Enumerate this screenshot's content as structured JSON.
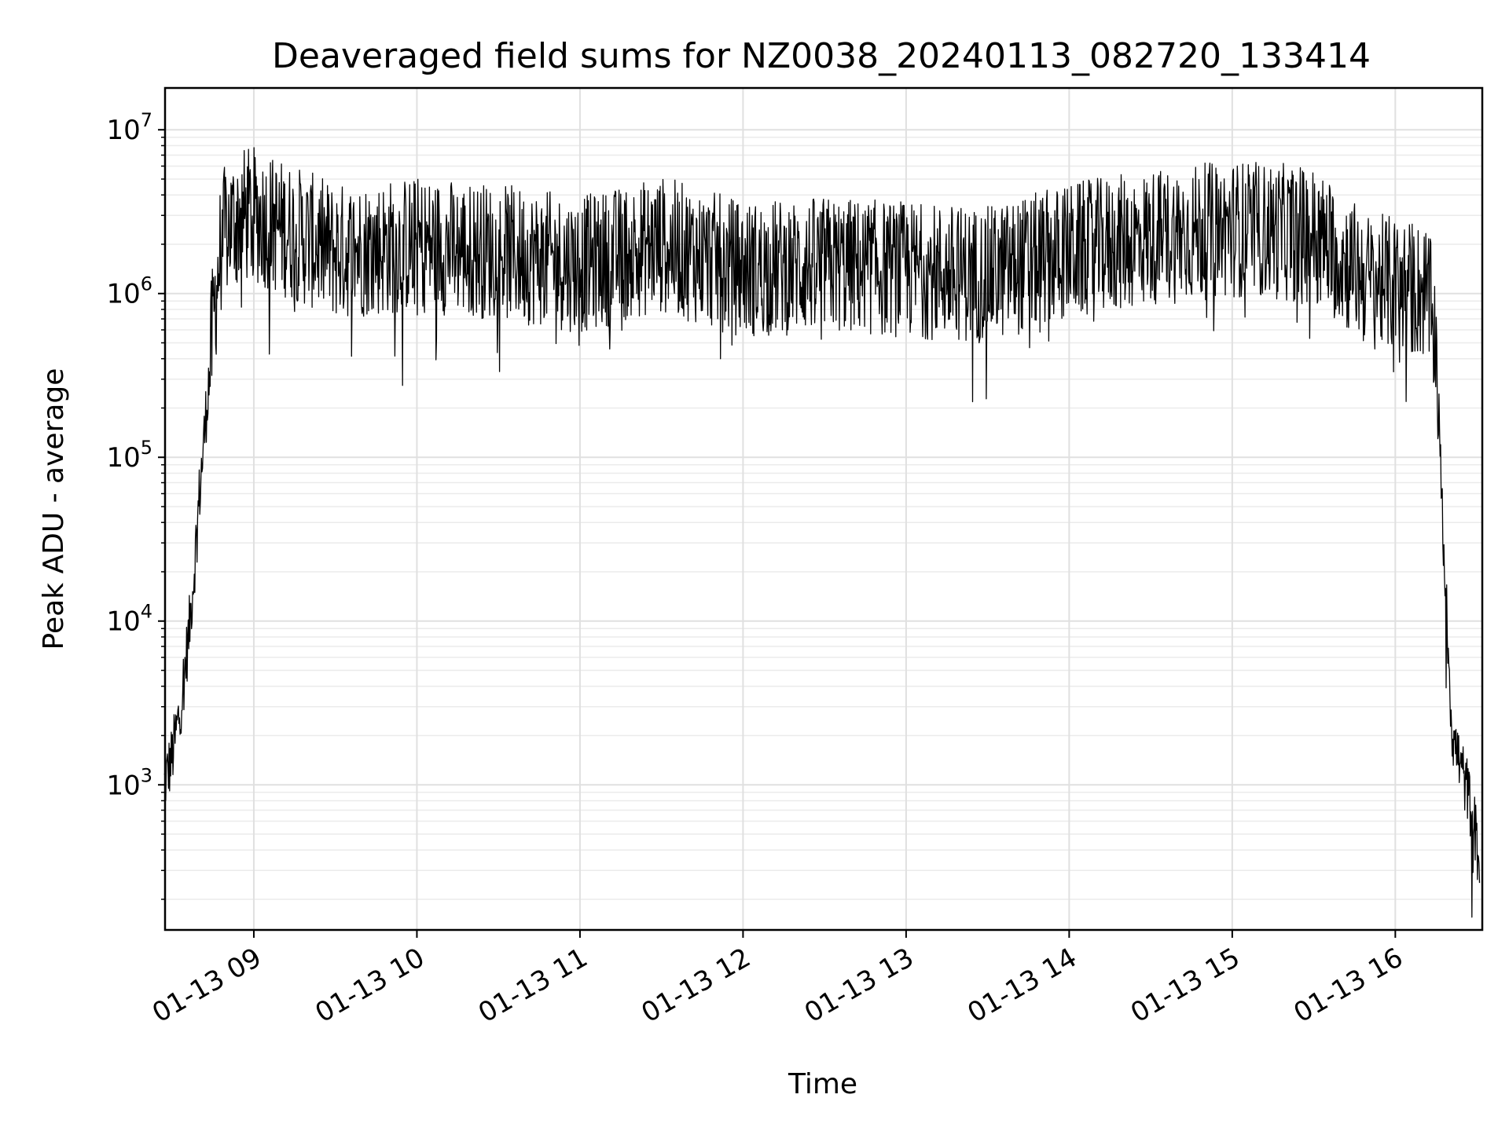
{
  "chart_data": {
    "type": "line",
    "title": "Deaveraged field sums for NZ0038_20240113_082720_133414",
    "xlabel": "Time",
    "ylabel": "Peak ADU - average",
    "x_axis": {
      "type": "time",
      "range": [
        "2024-01-13 08:27:20",
        "2024-01-13 16:32:00"
      ],
      "ticks": [
        "2024-01-13 09:00",
        "2024-01-13 10:00",
        "2024-01-13 11:00",
        "2024-01-13 12:00",
        "2024-01-13 13:00",
        "2024-01-13 14:00",
        "2024-01-13 15:00",
        "2024-01-13 16:00"
      ],
      "tick_labels": [
        "01-13 09",
        "01-13 10",
        "01-13 11",
        "01-13 12",
        "01-13 13",
        "01-13 14",
        "01-13 15",
        "01-13 16"
      ]
    },
    "y_axis": {
      "scale": "log",
      "ylim": [
        130,
        18000000
      ],
      "ticks": [
        1000,
        10000,
        100000,
        1000000,
        10000000
      ],
      "tick_labels": [
        {
          "base": "10",
          "exp": "3"
        },
        {
          "base": "10",
          "exp": "4"
        },
        {
          "base": "10",
          "exp": "5"
        },
        {
          "base": "10",
          "exp": "6"
        },
        {
          "base": "10",
          "exp": "7"
        }
      ]
    },
    "grid": "major and minor",
    "line_color": "#000000",
    "series": [
      {
        "x": [
          "2024-01-13 08:27",
          "2024-01-13 08:30",
          "2024-01-13 08:33",
          "2024-01-13 08:36",
          "2024-01-13 08:38",
          "2024-01-13 08:40",
          "2024-01-13 08:42",
          "2024-01-13 08:44",
          "2024-01-13 08:46",
          "2024-01-13 08:48",
          "2024-01-13 08:50",
          "2024-01-13 08:55",
          "2024-01-13 09:00",
          "2024-01-13 09:30",
          "2024-01-13 10:00",
          "2024-01-13 10:30",
          "2024-01-13 11:00",
          "2024-01-13 11:30",
          "2024-01-13 12:00",
          "2024-01-13 12:30",
          "2024-01-13 13:00",
          "2024-01-13 13:30",
          "2024-01-13 14:00",
          "2024-01-13 14:30",
          "2024-01-13 15:00",
          "2024-01-13 15:30",
          "2024-01-13 15:50",
          "2024-01-13 16:05",
          "2024-01-13 16:12",
          "2024-01-13 16:15",
          "2024-01-13 16:17",
          "2024-01-13 16:19",
          "2024-01-13 16:21",
          "2024-01-13 16:23",
          "2024-01-13 16:26",
          "2024-01-13 16:29",
          "2024-01-13 16:31"
        ],
        "y": [
          1000,
          1500,
          3000,
          8000,
          20000,
          60000,
          150000,
          400000,
          1000000,
          2000000,
          2500000,
          3000000,
          3000000,
          1800000,
          2000000,
          1800000,
          1500000,
          2000000,
          1400000,
          1500000,
          1400000,
          1300000,
          1800000,
          2200000,
          2500000,
          2300000,
          1200000,
          1100000,
          1000000,
          500000,
          60000,
          10000,
          2000,
          1500,
          1000,
          600,
          300
        ]
      }
    ]
  }
}
